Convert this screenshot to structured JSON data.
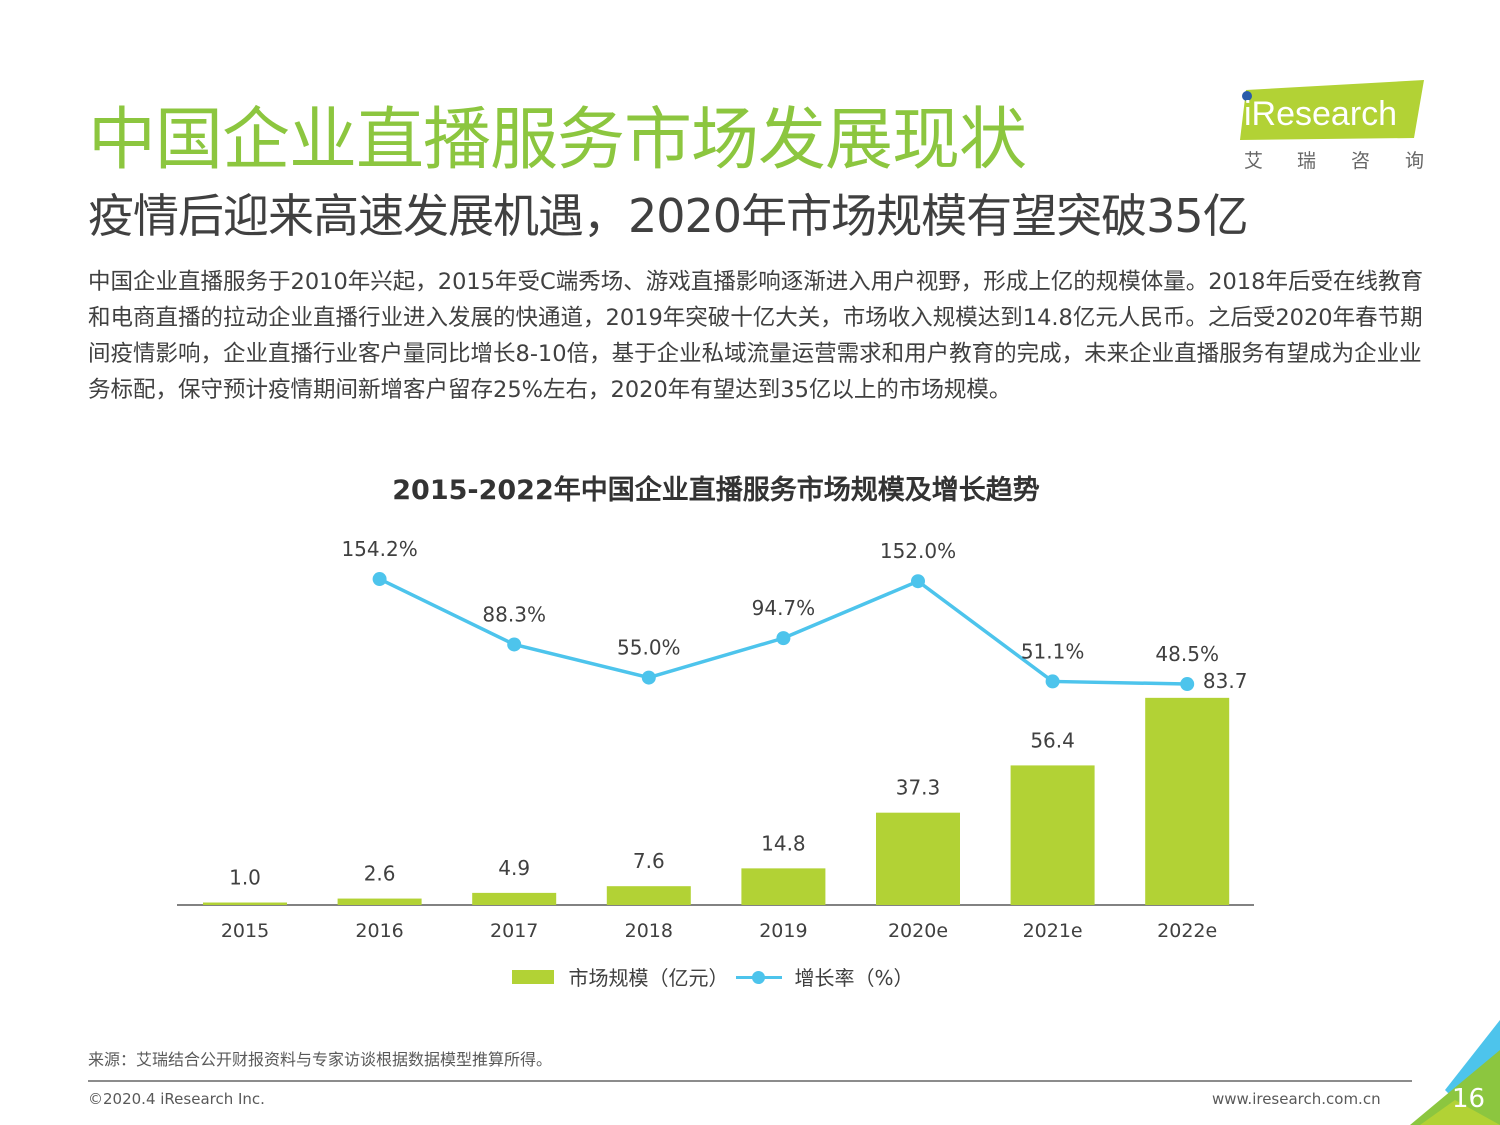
{
  "header": {
    "title": "中国企业直播服务市场发展现状",
    "subtitle": "疫情后迎来高速发展机遇，2020年市场规模有望突破35亿",
    "logo": {
      "text": "iResearch",
      "cn": [
        "艾",
        "瑞",
        "咨",
        "询"
      ]
    }
  },
  "body_text": "中国企业直播服务于2010年兴起，2015年受C端秀场、游戏直播影响逐渐进入用户视野，形成上亿的规模体量。2018年后受在线教育和电商直播的拉动企业直播行业进入发展的快通道，2019年突破十亿大关，市场收入规模达到14.8亿元人民币。之后受2020年春节期间疫情影响，企业直播行业客户量同比增长8-10倍，基于企业私域流量运营需求和用户教育的完成，未来企业直播服务有望成为企业业务标配，保守预计疫情期间新增客户留存25%左右，2020年有望达到35亿以上的市场规模。",
  "chart_data": {
    "type": "bar+line",
    "title": "2015-2022年中国企业直播服务市场规模及增长趋势",
    "categories": [
      "2015",
      "2016",
      "2017",
      "2018",
      "2019",
      "2020e",
      "2021e",
      "2022e"
    ],
    "series": [
      {
        "name": "市场规模（亿元）",
        "type": "bar",
        "color": "#b2d235",
        "values": [
          1.0,
          2.6,
          4.9,
          7.6,
          14.8,
          37.3,
          56.4,
          83.7
        ],
        "labels": [
          "1.0",
          "2.6",
          "4.9",
          "7.6",
          "14.8",
          "37.3",
          "56.4",
          "83.7"
        ]
      },
      {
        "name": "增长率（%）",
        "type": "line",
        "color": "#4dc4ec",
        "values": [
          null,
          154.2,
          88.3,
          55.0,
          94.7,
          152.0,
          51.1,
          48.5
        ],
        "labels": [
          "",
          "154.2%",
          "88.3%",
          "55.0%",
          "94.7%",
          "152.0%",
          "51.1%",
          "48.5%"
        ]
      }
    ],
    "legend": "bottom",
    "grid": false
  },
  "footer": {
    "source": "来源：艾瑞结合公开财报资料与专家访谈根据数据模型推算所得。",
    "copyright": "©2020.4 iResearch Inc.",
    "website": "www.iresearch.com.cn",
    "page": "16"
  },
  "colors": {
    "title": "#8cc63f",
    "bar": "#b2d235",
    "line": "#4dc4ec"
  }
}
